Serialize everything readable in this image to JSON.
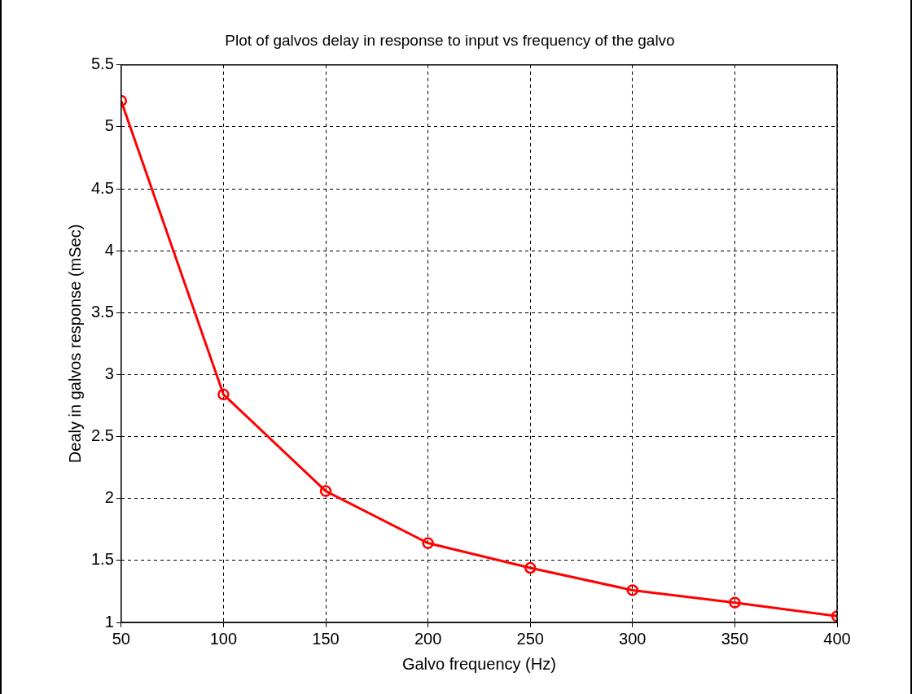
{
  "chart_data": {
    "type": "line",
    "title": "Plot of galvos delay in response to input vs frequency of the galvo",
    "xlabel": "Galvo frequency (Hz)",
    "ylabel": "Dealy in galvos response (mSec)",
    "x": [
      50,
      100,
      150,
      200,
      250,
      300,
      350,
      400
    ],
    "series": [
      {
        "color": "#ff0000",
        "values": [
          5.21,
          2.84,
          2.06,
          1.64,
          1.44,
          1.26,
          1.16,
          1.05
        ]
      }
    ],
    "xlim": [
      50,
      400
    ],
    "xticks": [
      50,
      100,
      150,
      200,
      250,
      300,
      350,
      400
    ],
    "ylim": [
      1,
      5.5
    ],
    "yticks": [
      1,
      1.5,
      2,
      2.5,
      3,
      3.5,
      4,
      4.5,
      5,
      5.5
    ],
    "grid": true,
    "marker": "circle",
    "line_style": "solid",
    "legend": false
  }
}
